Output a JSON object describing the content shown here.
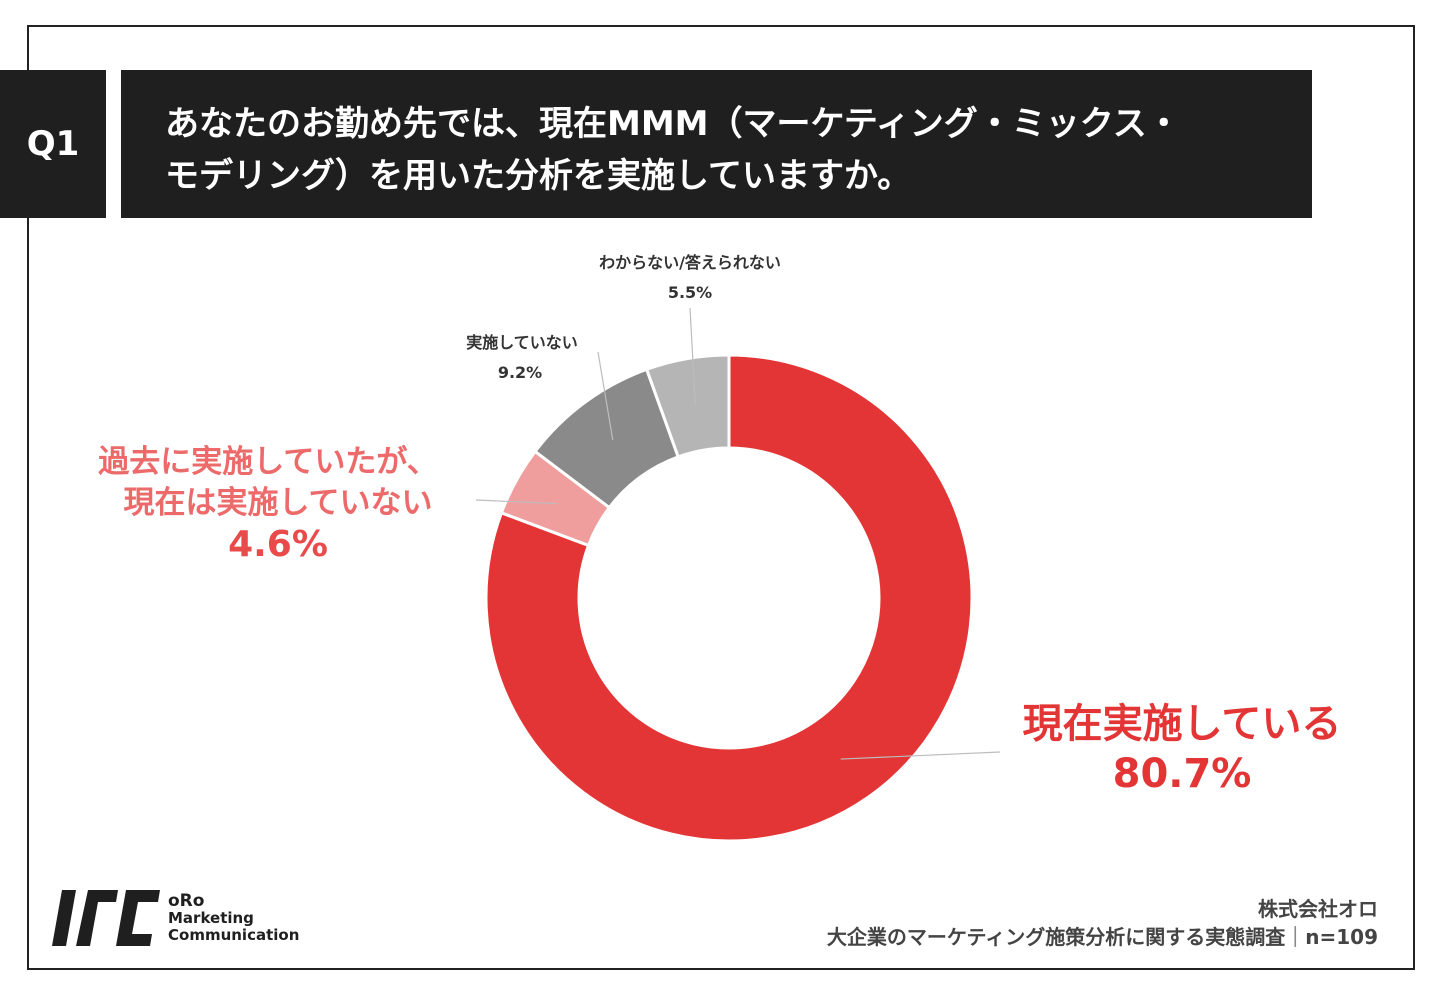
{
  "header": {
    "badge": "Q1",
    "question_line1": "あなたのお勤め先では、現在MMM（マーケティング・ミックス・",
    "question_line2": "モデリング）を用いた分析を実施していますか。"
  },
  "chart_data": {
    "type": "pie",
    "donut": true,
    "slices": [
      {
        "label": "現在実施している",
        "value": 80.7,
        "display": "80.7%",
        "color": "#e33535"
      },
      {
        "label_lines": [
          "過去に実施していたが、",
          "現在は実施していない"
        ],
        "value": 4.6,
        "display": "4.6%",
        "color": "#f09d9d"
      },
      {
        "label": "実施していない",
        "value": 9.2,
        "display": "9.2%",
        "color": "#8a8a8a"
      },
      {
        "label": "わからない/答えられない",
        "value": 5.5,
        "display": "5.5%",
        "color": "#b5b5b5"
      }
    ]
  },
  "footer": {
    "company": "株式会社オロ",
    "survey": "大企業のマーケティング施策分析に関する実態調査",
    "sample": "n=109",
    "separator": "｜"
  },
  "logo": {
    "icon": "oro-logo-mark",
    "line1": "oRo",
    "line2": "Marketing",
    "line3": "Communication"
  }
}
